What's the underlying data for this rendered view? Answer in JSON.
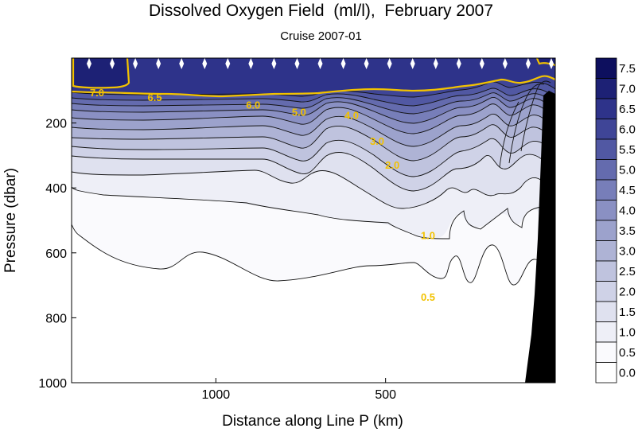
{
  "chart_data": {
    "type": "contour",
    "title": "Dissolved Oxygen Field  (ml/l),  February 2007",
    "subtitle": "Cruise 2007-01",
    "xlabel": "Distance along Line P  (km)",
    "ylabel": "Pressure  (dbar)",
    "x_ticks": [
      {
        "value": 1000,
        "label": "1000"
      },
      {
        "value": 500,
        "label": "500"
      }
    ],
    "xlim": [
      1425,
      0
    ],
    "y_ticks": [
      {
        "value": 200,
        "label": "200"
      },
      {
        "value": 400,
        "label": "400"
      },
      {
        "value": 600,
        "label": "600"
      },
      {
        "value": 800,
        "label": "800"
      },
      {
        "value": 1000,
        "label": "1000"
      }
    ],
    "ylim": [
      0,
      1000
    ],
    "colorbar_levels": [
      {
        "value": 7.5,
        "label": "7.5",
        "color": "#0d0f5e"
      },
      {
        "value": 7.0,
        "label": "7.0",
        "color": "#1d2175"
      },
      {
        "value": 6.5,
        "label": "6.5",
        "color": "#2e338a"
      },
      {
        "value": 6.0,
        "label": "6.0",
        "color": "#3f4597"
      },
      {
        "value": 5.5,
        "label": "5.5",
        "color": "#5158a3"
      },
      {
        "value": 5.0,
        "label": "5.0",
        "color": "#646bae"
      },
      {
        "value": 4.5,
        "label": "4.5",
        "color": "#777eb9"
      },
      {
        "value": 4.0,
        "label": "4.0",
        "color": "#8a90c3"
      },
      {
        "value": 3.5,
        "label": "3.5",
        "color": "#9ca2cc"
      },
      {
        "value": 3.0,
        "label": "3.0",
        "color": "#aeb3d5"
      },
      {
        "value": 2.5,
        "label": "2.5",
        "color": "#bfc3de"
      },
      {
        "value": 2.0,
        "label": "2.0",
        "color": "#cfd2e7"
      },
      {
        "value": 1.5,
        "label": "1.5",
        "color": "#dfe1ef"
      },
      {
        "value": 1.0,
        "label": "1.0",
        "color": "#eeeff7"
      },
      {
        "value": 0.5,
        "label": "0.5",
        "color": "#fafafd"
      },
      {
        "value": 0.0,
        "label": "0.0",
        "color": "#ffffff"
      }
    ],
    "contour_labels": [
      {
        "value": 7.0,
        "label": "7.0",
        "x": 1350,
        "y": 105
      },
      {
        "value": 6.5,
        "label": "6.5",
        "x": 1180,
        "y": 120
      },
      {
        "value": 6.0,
        "label": "6.0",
        "x": 890,
        "y": 143
      },
      {
        "value": 5.0,
        "label": "5.0",
        "x": 755,
        "y": 165
      },
      {
        "value": 4.0,
        "label": "4.0",
        "x": 600,
        "y": 175
      },
      {
        "value": 3.0,
        "label": "3.0",
        "x": 525,
        "y": 255
      },
      {
        "value": 2.0,
        "label": "2.0",
        "x": 480,
        "y": 328
      },
      {
        "value": 1.0,
        "label": "1.0",
        "x": 375,
        "y": 545
      },
      {
        "value": 0.5,
        "label": "0.5",
        "x": 375,
        "y": 735
      }
    ],
    "station_markers": 21,
    "contour_line_color": "#f2c200",
    "bottom_terrain_color": "#000000",
    "grid": false
  }
}
